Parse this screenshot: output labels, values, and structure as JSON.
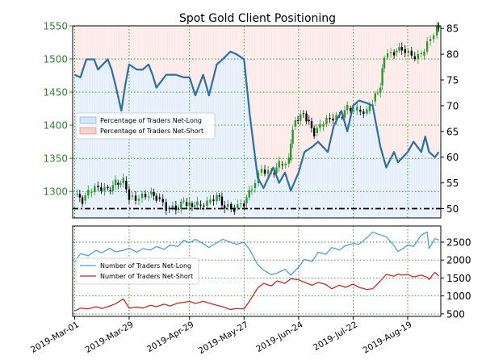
{
  "chart_data": [
    {
      "type": "line",
      "title": "Spot Gold Client Positioning",
      "subplot": "top",
      "x_type": "date",
      "x_tick_labels": [
        "2019-Mar-01",
        "2019-Mar-29",
        "2019-Apr-29",
        "2019-May-27",
        "2019-Jun-24",
        "2019-Jul-22",
        "2019-Aug-19"
      ],
      "left_axis": {
        "label": "",
        "ticks": [
          1300,
          1350,
          1400,
          1450,
          1500,
          1550
        ],
        "range": [
          1260,
          1550
        ]
      },
      "right_axis": {
        "label": "",
        "ticks": [
          50,
          55,
          60,
          65,
          70,
          75,
          80,
          85
        ],
        "range": [
          48.2,
          85.5
        ]
      },
      "grid": true,
      "legend": {
        "position": "middle-left",
        "entries": [
          "Percentage of Traders Net-Long",
          "Percentage of Traders Net-Short"
        ]
      },
      "reference_line": {
        "style": "dash-dot",
        "value": 50,
        "axis": "right"
      },
      "series": [
        {
          "name": "Percentage of Traders Net-Long",
          "kind": "line",
          "axis": "right",
          "color": "#2b6ea8",
          "points": [
            [
              "2019-03-01",
              76
            ],
            [
              "2019-03-04",
              75.5
            ],
            [
              "2019-03-07",
              79
            ],
            [
              "2019-03-11",
              79
            ],
            [
              "2019-03-13",
              77
            ],
            [
              "2019-03-18",
              79
            ],
            [
              "2019-03-20",
              77
            ],
            [
              "2019-03-22",
              74
            ],
            [
              "2019-03-25",
              69
            ],
            [
              "2019-03-27",
              74
            ],
            [
              "2019-03-29",
              78
            ],
            [
              "2019-04-02",
              77
            ],
            [
              "2019-04-05",
              77
            ],
            [
              "2019-04-08",
              78
            ],
            [
              "2019-04-10",
              76
            ],
            [
              "2019-04-12",
              73.5
            ],
            [
              "2019-04-17",
              76
            ],
            [
              "2019-04-22",
              76
            ],
            [
              "2019-04-26",
              75.5
            ],
            [
              "2019-04-29",
              75.5
            ],
            [
              "2019-05-02",
              72
            ],
            [
              "2019-05-06",
              76
            ],
            [
              "2019-05-09",
              72
            ],
            [
              "2019-05-13",
              78
            ],
            [
              "2019-05-16",
              79
            ],
            [
              "2019-05-20",
              80.5
            ],
            [
              "2019-05-23",
              80
            ],
            [
              "2019-05-27",
              79
            ],
            [
              "2019-05-30",
              68
            ],
            [
              "2019-06-03",
              56
            ],
            [
              "2019-06-06",
              54
            ],
            [
              "2019-06-11",
              58
            ],
            [
              "2019-06-14",
              55
            ],
            [
              "2019-06-17",
              57
            ],
            [
              "2019-06-20",
              53.5
            ],
            [
              "2019-06-24",
              57
            ],
            [
              "2019-06-27",
              61
            ],
            [
              "2019-07-01",
              62
            ],
            [
              "2019-07-04",
              63
            ],
            [
              "2019-07-09",
              61
            ],
            [
              "2019-07-12",
              66
            ],
            [
              "2019-07-16",
              69
            ],
            [
              "2019-07-19",
              65
            ],
            [
              "2019-07-22",
              70
            ],
            [
              "2019-07-25",
              71
            ],
            [
              "2019-07-29",
              70.5
            ],
            [
              "2019-08-01",
              70
            ],
            [
              "2019-08-05",
              62
            ],
            [
              "2019-08-08",
              58
            ],
            [
              "2019-08-12",
              61
            ],
            [
              "2019-08-14",
              59
            ],
            [
              "2019-08-19",
              61
            ],
            [
              "2019-08-22",
              63
            ],
            [
              "2019-08-26",
              61
            ],
            [
              "2019-08-28",
              64
            ],
            [
              "2019-08-30",
              61
            ],
            [
              "2019-09-02",
              60
            ],
            [
              "2019-09-04",
              61
            ]
          ]
        },
        {
          "name": "Spot Gold",
          "kind": "candlestick",
          "axis": "left",
          "up_color": "#2a9a2a",
          "down_color": "#000000",
          "points": [
            [
              "2019-03-01",
              1295
            ],
            [
              "2019-03-05",
              1286
            ],
            [
              "2019-03-08",
              1298
            ],
            [
              "2019-03-13",
              1306
            ],
            [
              "2019-03-18",
              1302
            ],
            [
              "2019-03-22",
              1313
            ],
            [
              "2019-03-26",
              1316
            ],
            [
              "2019-03-29",
              1292
            ],
            [
              "2019-04-03",
              1290
            ],
            [
              "2019-04-08",
              1296
            ],
            [
              "2019-04-12",
              1291
            ],
            [
              "2019-04-17",
              1275
            ],
            [
              "2019-04-22",
              1273
            ],
            [
              "2019-04-26",
              1284
            ],
            [
              "2019-04-29",
              1282
            ],
            [
              "2019-05-03",
              1280
            ],
            [
              "2019-05-08",
              1283
            ],
            [
              "2019-05-13",
              1294
            ],
            [
              "2019-05-17",
              1277
            ],
            [
              "2019-05-22",
              1274
            ],
            [
              "2019-05-27",
              1282
            ],
            [
              "2019-05-31",
              1305
            ],
            [
              "2019-06-05",
              1333
            ],
            [
              "2019-06-10",
              1327
            ],
            [
              "2019-06-14",
              1341
            ],
            [
              "2019-06-19",
              1347
            ],
            [
              "2019-06-21",
              1398
            ],
            [
              "2019-06-25",
              1418
            ],
            [
              "2019-06-28",
              1408
            ],
            [
              "2019-07-02",
              1388
            ],
            [
              "2019-07-05",
              1398
            ],
            [
              "2019-07-10",
              1410
            ],
            [
              "2019-07-15",
              1412
            ],
            [
              "2019-07-19",
              1426
            ],
            [
              "2019-07-24",
              1423
            ],
            [
              "2019-07-29",
              1421
            ],
            [
              "2019-08-01",
              1436
            ],
            [
              "2019-08-05",
              1460
            ],
            [
              "2019-08-07",
              1502
            ],
            [
              "2019-08-12",
              1510
            ],
            [
              "2019-08-16",
              1515
            ],
            [
              "2019-08-21",
              1504
            ],
            [
              "2019-08-26",
              1505
            ],
            [
              "2019-08-29",
              1527
            ],
            [
              "2019-09-03",
              1545
            ],
            [
              "2019-09-04",
              1553
            ]
          ]
        }
      ]
    },
    {
      "type": "line",
      "subplot": "bottom",
      "x_type": "date",
      "right_axis": {
        "label": "",
        "ticks": [
          500,
          1000,
          1500,
          2000,
          2500
        ],
        "range": [
          430,
          2950
        ]
      },
      "grid": true,
      "legend": {
        "position": "middle-left",
        "entries": [
          "Number of Traders Net-Long",
          "Number of Traders Net-Short"
        ]
      },
      "series": [
        {
          "name": "Number of Traders Net-Long",
          "color": "#4aa0e0",
          "points": [
            [
              "2019-03-01",
              1950
            ],
            [
              "2019-03-04",
              2180
            ],
            [
              "2019-03-08",
              2120
            ],
            [
              "2019-03-12",
              2270
            ],
            [
              "2019-03-15",
              2200
            ],
            [
              "2019-03-19",
              2330
            ],
            [
              "2019-03-22",
              2230
            ],
            [
              "2019-03-26",
              2270
            ],
            [
              "2019-03-29",
              2330
            ],
            [
              "2019-04-02",
              2220
            ],
            [
              "2019-04-05",
              2320
            ],
            [
              "2019-04-09",
              2280
            ],
            [
              "2019-04-12",
              2380
            ],
            [
              "2019-04-16",
              2300
            ],
            [
              "2019-04-19",
              2420
            ],
            [
              "2019-04-23",
              2380
            ],
            [
              "2019-04-26",
              2550
            ],
            [
              "2019-04-29",
              2480
            ],
            [
              "2019-05-02",
              2580
            ],
            [
              "2019-05-06",
              2460
            ],
            [
              "2019-05-09",
              2350
            ],
            [
              "2019-05-13",
              2480
            ],
            [
              "2019-05-16",
              2580
            ],
            [
              "2019-05-20",
              2500
            ],
            [
              "2019-05-23",
              2440
            ],
            [
              "2019-05-27",
              2500
            ],
            [
              "2019-05-30",
              2280
            ],
            [
              "2019-06-03",
              1870
            ],
            [
              "2019-06-06",
              1720
            ],
            [
              "2019-06-10",
              1590
            ],
            [
              "2019-06-13",
              1640
            ],
            [
              "2019-06-17",
              1740
            ],
            [
              "2019-06-20",
              1580
            ],
            [
              "2019-06-24",
              1800
            ],
            [
              "2019-06-27",
              2020
            ],
            [
              "2019-07-01",
              1960
            ],
            [
              "2019-07-04",
              2220
            ],
            [
              "2019-07-08",
              2160
            ],
            [
              "2019-07-11",
              2350
            ],
            [
              "2019-07-15",
              2280
            ],
            [
              "2019-07-18",
              2400
            ],
            [
              "2019-07-22",
              2460
            ],
            [
              "2019-07-25",
              2440
            ],
            [
              "2019-07-29",
              2620
            ],
            [
              "2019-08-01",
              2780
            ],
            [
              "2019-08-05",
              2700
            ],
            [
              "2019-08-08",
              2650
            ],
            [
              "2019-08-12",
              2400
            ],
            [
              "2019-08-14",
              2240
            ],
            [
              "2019-08-16",
              2300
            ],
            [
              "2019-08-19",
              2420
            ],
            [
              "2019-08-22",
              2380
            ],
            [
              "2019-08-26",
              2700
            ],
            [
              "2019-08-29",
              2780
            ],
            [
              "2019-08-30",
              2320
            ],
            [
              "2019-09-02",
              2600
            ],
            [
              "2019-09-04",
              2560
            ]
          ]
        },
        {
          "name": "Number of Traders Net-Short",
          "color": "#dd2222",
          "points": [
            [
              "2019-03-01",
              580
            ],
            [
              "2019-03-04",
              660
            ],
            [
              "2019-03-08",
              640
            ],
            [
              "2019-03-12",
              700
            ],
            [
              "2019-03-15",
              650
            ],
            [
              "2019-03-19",
              720
            ],
            [
              "2019-03-22",
              780
            ],
            [
              "2019-03-26",
              920
            ],
            [
              "2019-03-29",
              660
            ],
            [
              "2019-04-02",
              690
            ],
            [
              "2019-04-05",
              660
            ],
            [
              "2019-04-09",
              740
            ],
            [
              "2019-04-12",
              700
            ],
            [
              "2019-04-16",
              770
            ],
            [
              "2019-04-19",
              720
            ],
            [
              "2019-04-23",
              800
            ],
            [
              "2019-04-26",
              820
            ],
            [
              "2019-04-29",
              850
            ],
            [
              "2019-05-02",
              790
            ],
            [
              "2019-05-06",
              850
            ],
            [
              "2019-05-09",
              800
            ],
            [
              "2019-05-13",
              740
            ],
            [
              "2019-05-16",
              700
            ],
            [
              "2019-05-20",
              620
            ],
            [
              "2019-05-23",
              650
            ],
            [
              "2019-05-27",
              640
            ],
            [
              "2019-05-30",
              870
            ],
            [
              "2019-06-03",
              1220
            ],
            [
              "2019-06-06",
              1350
            ],
            [
              "2019-06-10",
              1280
            ],
            [
              "2019-06-13",
              1420
            ],
            [
              "2019-06-17",
              1350
            ],
            [
              "2019-06-20",
              1480
            ],
            [
              "2019-06-24",
              1450
            ],
            [
              "2019-06-27",
              1380
            ],
            [
              "2019-07-01",
              1300
            ],
            [
              "2019-07-04",
              1380
            ],
            [
              "2019-07-08",
              1320
            ],
            [
              "2019-07-11",
              1200
            ],
            [
              "2019-07-15",
              1300
            ],
            [
              "2019-07-18",
              1240
            ],
            [
              "2019-07-22",
              1330
            ],
            [
              "2019-07-25",
              1240
            ],
            [
              "2019-07-29",
              1180
            ],
            [
              "2019-08-01",
              1200
            ],
            [
              "2019-08-05",
              1420
            ],
            [
              "2019-08-08",
              1600
            ],
            [
              "2019-08-12",
              1550
            ],
            [
              "2019-08-14",
              1610
            ],
            [
              "2019-08-16",
              1580
            ],
            [
              "2019-08-19",
              1600
            ],
            [
              "2019-08-22",
              1530
            ],
            [
              "2019-08-26",
              1580
            ],
            [
              "2019-08-29",
              1520
            ],
            [
              "2019-08-30",
              1460
            ],
            [
              "2019-09-02",
              1660
            ],
            [
              "2019-09-04",
              1560
            ]
          ]
        }
      ]
    }
  ]
}
